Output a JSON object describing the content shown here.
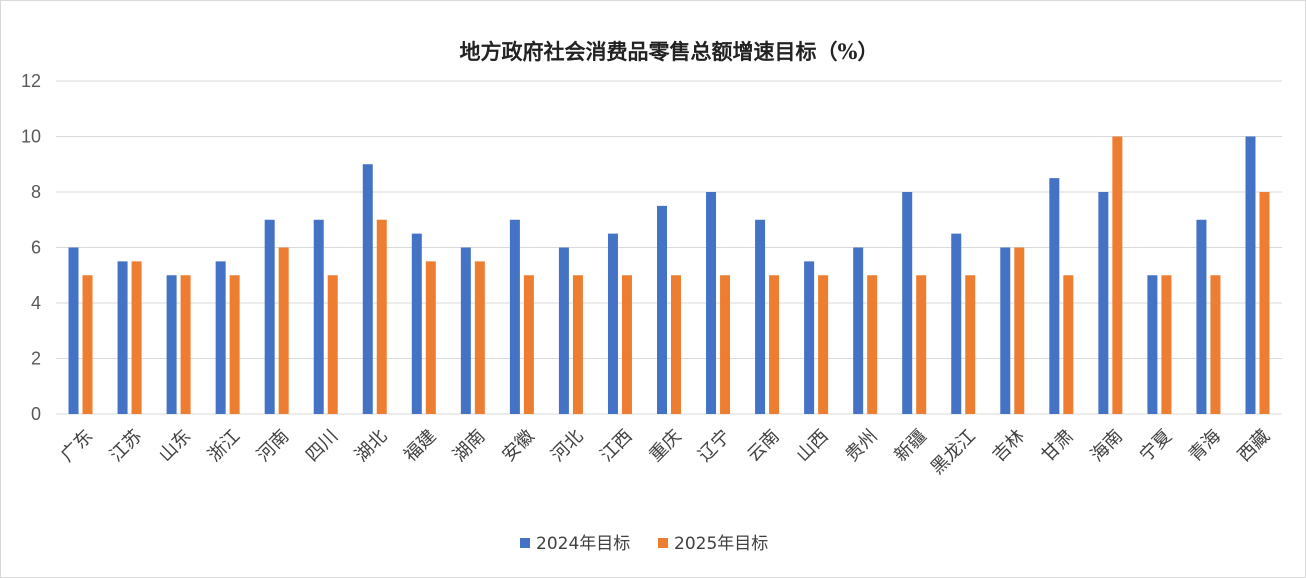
{
  "chart_data": {
    "type": "bar",
    "title": "地方政府社会消费品零售总额增速目标（%）",
    "xlabel": "",
    "ylabel": "",
    "ylim": [
      0,
      12
    ],
    "yticks": [
      0,
      2,
      4,
      6,
      8,
      10,
      12
    ],
    "grid": true,
    "legend_position": "bottom",
    "categories": [
      "广东",
      "江苏",
      "山东",
      "浙江",
      "河南",
      "四川",
      "湖北",
      "福建",
      "湖南",
      "安徽",
      "河北",
      "江西",
      "重庆",
      "辽宁",
      "云南",
      "山西",
      "贵州",
      "新疆",
      "黑龙江",
      "吉林",
      "甘肃",
      "海南",
      "宁夏",
      "青海",
      "西藏"
    ],
    "series": [
      {
        "name": "2024年目标",
        "color": "#4472C4",
        "values": [
          6,
          5.5,
          5,
          5.5,
          7,
          7,
          9,
          6.5,
          6,
          7,
          6,
          6.5,
          7.5,
          8,
          7,
          5.5,
          6,
          8,
          6.5,
          6,
          8.5,
          8,
          5,
          7,
          10
        ]
      },
      {
        "name": "2025年目标",
        "color": "#ED7D31",
        "values": [
          5,
          5.5,
          5,
          5,
          6,
          5,
          7,
          5.5,
          5.5,
          5,
          5,
          5,
          5,
          5,
          5,
          5,
          5,
          5,
          5,
          6,
          5,
          10,
          5,
          5,
          8
        ]
      }
    ]
  }
}
